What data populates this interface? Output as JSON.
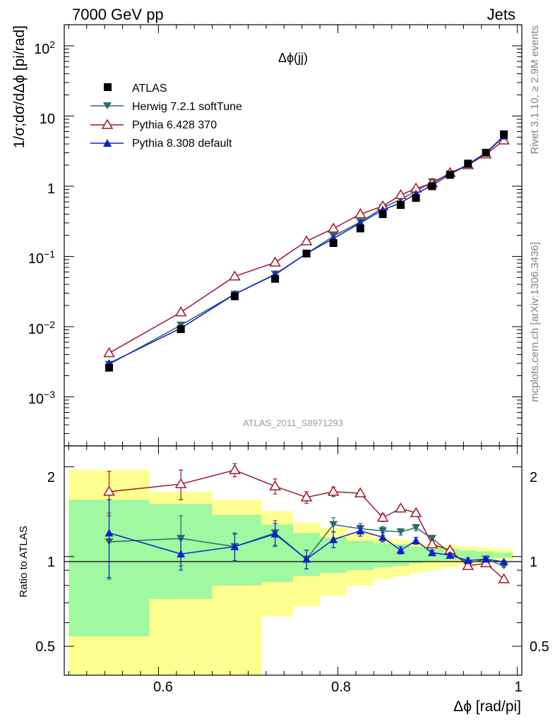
{
  "chart_data": {
    "type": "line",
    "header_left": "7000 GeV pp",
    "header_right": "Jets",
    "title": "Δϕ(jj)",
    "analysis_ref": "ATLAS_2011_S8971293",
    "side_label_1": "Rivet 3.1.10, ≥ 2.9M events",
    "side_label_2": "mcplots.cern.ch [arXiv:1306.3436]",
    "ylabel": "1/σ;dσ/dΔϕ [pi/rad]",
    "ratio_ylabel": "Ratio to ATLAS",
    "xlabel": "Δϕ [rad/pi]",
    "xlim": [
      0.495,
      1.005
    ],
    "ylim": [
      0.0002,
      200
    ],
    "yscale": "log",
    "ratio_ylim": [
      0.4,
      2.35
    ],
    "ratio_yscale": "log",
    "x_ticks": [
      "0.6",
      "0.8",
      "1"
    ],
    "y_ticks": [
      "10^-3",
      "10^-2",
      "10^-1",
      "1",
      "10",
      "10^2"
    ],
    "ratio_ticks": [
      "0.5",
      "1",
      "2"
    ],
    "x": [
      0.545,
      0.625,
      0.685,
      0.73,
      0.765,
      0.795,
      0.825,
      0.85,
      0.87,
      0.887,
      0.905,
      0.925,
      0.945,
      0.965,
      0.985
    ],
    "series": [
      {
        "name": "ATLAS",
        "marker": "square",
        "color": "#000000",
        "values": [
          0.0026,
          0.0092,
          0.027,
          0.048,
          0.11,
          0.155,
          0.25,
          0.4,
          0.54,
          0.68,
          1.0,
          1.45,
          2.1,
          3.0,
          5.5
        ]
      },
      {
        "name": "Herwig 7.2.1 softTune",
        "marker": "triangle-down",
        "color": "#2a6a6a",
        "values": [
          0.0029,
          0.0105,
          0.029,
          0.056,
          0.11,
          0.195,
          0.31,
          0.49,
          0.65,
          0.85,
          1.15,
          1.5,
          2.0,
          2.95,
          5.1
        ],
        "ratio": [
          1.12,
          1.15,
          1.08,
          1.2,
          0.98,
          1.28,
          1.24,
          1.22,
          1.21,
          1.25,
          1.15,
          1.03,
          0.95,
          0.98,
          0.93
        ],
        "ratio_err": [
          0.28,
          0.22,
          0.12,
          0.12,
          0.07,
          0.07,
          0.05,
          0.04,
          0.03,
          0.03,
          0.02,
          0.02,
          0.02,
          0.01,
          0.01
        ]
      },
      {
        "name": "Pythia 6.428 370",
        "marker": "triangle-open",
        "color": "#a0182a",
        "values": [
          0.0042,
          0.016,
          0.052,
          0.082,
          0.165,
          0.25,
          0.4,
          0.52,
          0.75,
          0.93,
          1.1,
          1.55,
          2.0,
          2.85,
          4.5
        ],
        "ratio": [
          1.65,
          1.75,
          1.95,
          1.72,
          1.58,
          1.65,
          1.63,
          1.35,
          1.45,
          1.4,
          1.1,
          1.05,
          0.93,
          0.95,
          0.84
        ],
        "ratio_err": [
          0.28,
          0.2,
          0.1,
          0.1,
          0.07,
          0.06,
          0.04,
          0.04,
          0.03,
          0.03,
          0.02,
          0.02,
          0.02,
          0.01,
          0.01
        ]
      },
      {
        "name": "Pythia 8.308 default",
        "marker": "triangle-up",
        "color": "#1020c8",
        "values": [
          0.003,
          0.0095,
          0.029,
          0.055,
          0.11,
          0.18,
          0.3,
          0.46,
          0.58,
          0.78,
          1.03,
          1.48,
          2.05,
          3.0,
          5.2
        ],
        "ratio": [
          1.2,
          1.02,
          1.08,
          1.19,
          0.98,
          1.14,
          1.22,
          1.16,
          1.05,
          1.13,
          1.03,
          1.01,
          0.97,
          0.98,
          0.96
        ],
        "ratio_err": [
          0.35,
          0.12,
          0.11,
          0.1,
          0.07,
          0.07,
          0.05,
          0.04,
          0.03,
          0.03,
          0.02,
          0.02,
          0.02,
          0.01,
          0.01
        ]
      }
    ],
    "uncertainty_bands": {
      "edges": [
        0.5,
        0.59,
        0.66,
        0.715,
        0.75,
        0.78,
        0.81,
        0.84,
        0.86,
        0.88,
        0.895,
        0.915,
        0.935,
        0.955,
        0.975,
        0.995
      ],
      "inner_low": [
        0.54,
        0.72,
        0.8,
        0.82,
        0.86,
        0.88,
        0.9,
        0.92,
        0.93,
        0.95,
        0.96,
        0.97,
        0.98,
        0.985,
        0.99
      ],
      "inner_high": [
        1.55,
        1.5,
        1.38,
        1.28,
        1.2,
        1.16,
        1.13,
        1.11,
        1.1,
        1.08,
        1.07,
        1.06,
        1.05,
        1.04,
        1.03
      ],
      "outer_low": [
        0.4,
        0.4,
        0.4,
        0.63,
        0.68,
        0.74,
        0.8,
        0.84,
        0.86,
        0.88,
        0.9,
        0.92,
        0.94,
        0.955,
        0.96
      ],
      "outer_high": [
        1.95,
        1.65,
        1.55,
        1.42,
        1.3,
        1.25,
        1.2,
        1.16,
        1.14,
        1.12,
        1.1,
        1.09,
        1.08,
        1.07,
        1.06
      ],
      "inner_color": "#a0f8a0",
      "outer_color": "#ffff90"
    },
    "legend_position": "top-left",
    "grid": false
  }
}
